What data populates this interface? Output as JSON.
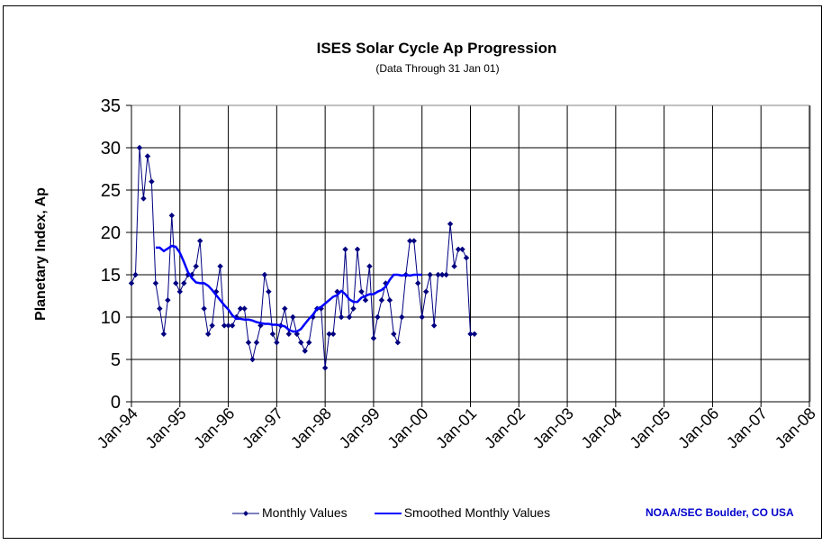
{
  "chart_data": {
    "type": "line",
    "title": "ISES Solar Cycle Ap Progression",
    "subtitle": "(Data Through 31 Jan 01)",
    "xlabel": "",
    "ylabel": "Planetary Index, Ap",
    "ylim": [
      0,
      35
    ],
    "yticks": [
      0,
      5,
      10,
      15,
      20,
      25,
      30,
      35
    ],
    "xlim_months_from_jan94": [
      0,
      168
    ],
    "xticks": [
      "Jan-94",
      "Jan-95",
      "Jan-96",
      "Jan-97",
      "Jan-98",
      "Jan-99",
      "Jan-00",
      "Jan-01",
      "Jan-02",
      "Jan-03",
      "Jan-04",
      "Jan-05",
      "Jan-06",
      "Jan-07",
      "Jan-08"
    ],
    "grid": true,
    "legend_position": "bottom",
    "series": [
      {
        "name": "Monthly Values",
        "color": "#000080",
        "marker": "diamond",
        "start": "Jan-94",
        "values": [
          14,
          15,
          30,
          24,
          29,
          26,
          14,
          11,
          8,
          12,
          22,
          14,
          13,
          14,
          15,
          15,
          16,
          19,
          11,
          8,
          9,
          13,
          16,
          9,
          9,
          9,
          10,
          11,
          11,
          7,
          5,
          7,
          9,
          15,
          13,
          8,
          7,
          9,
          11,
          8,
          10,
          8,
          7,
          6,
          7,
          10,
          11,
          11,
          4,
          8,
          8,
          13,
          10,
          18,
          10,
          11,
          18,
          13,
          12,
          16,
          7.5,
          10,
          12,
          14,
          12,
          8,
          7,
          10,
          15,
          19,
          19,
          14,
          10,
          13,
          15,
          9,
          15,
          15,
          15,
          21,
          16,
          18,
          18,
          17,
          8,
          8
        ]
      },
      {
        "name": "Smoothed Monthly Values",
        "color": "#0000ff",
        "start": "Jul-94",
        "values": [
          18.2,
          18.2,
          17.8,
          18.1,
          18.4,
          18.3,
          17.6,
          16.5,
          15.3,
          14.6,
          14.1,
          14.0,
          14.0,
          13.7,
          13.2,
          12.6,
          12.0,
          11.4,
          10.9,
          10.2,
          9.8,
          9.8,
          9.7,
          9.7,
          9.6,
          9.4,
          9.3,
          9.2,
          9.2,
          9.1,
          9.1,
          9.0,
          8.9,
          8.5,
          8.3,
          8.3,
          8.6,
          9.2,
          9.8,
          10.3,
          11.0,
          11.2,
          11.6,
          12.0,
          12.4,
          12.6,
          13.1,
          12.7,
          12.1,
          11.8,
          11.8,
          12.3,
          12.5,
          12.7,
          12.7,
          13.0,
          13.2,
          13.6,
          14.4,
          15.0,
          15.0,
          14.9,
          15.0,
          14.9,
          15.0,
          15.0,
          15.0
        ]
      }
    ]
  },
  "legend": {
    "monthly_label": "Monthly Values",
    "smoothed_label": "Smoothed Monthly Values"
  },
  "credit": "NOAA/SEC Boulder, CO USA"
}
